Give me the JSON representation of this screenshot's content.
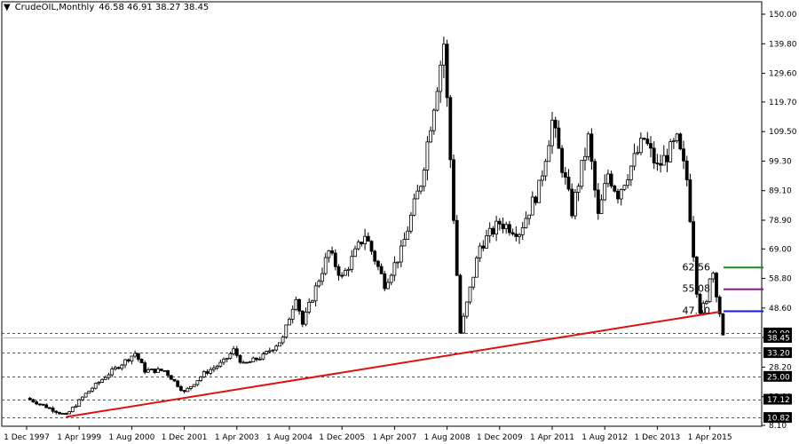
{
  "header": {
    "symbol_label": "CrudeOIL,Monthly",
    "ohlc_text": "46.58 46.91 38.27 38.45",
    "menu_arrow": "chevron-down-icon"
  },
  "chart_data": {
    "type": "candlestick",
    "title": "CrudeOIL,Monthly",
    "ylim": [
      8.1,
      153.5
    ],
    "y_ticks": [
      "150.00",
      "139.80",
      "129.60",
      "119.70",
      "109.50",
      "99.30",
      "89.10",
      "78.90",
      "69.00",
      "58.80",
      "48.60",
      "38.40",
      "28.20",
      "18.00",
      "8.10"
    ],
    "x_ticks": [
      "1 Dec 1997",
      "1 Apr 1999",
      "1 Aug 2000",
      "1 Dec 2001",
      "1 Apr 2003",
      "1 Aug 2004",
      "1 Dec 2005",
      "1 Apr 2007",
      "1 Aug 2008",
      "1 Dec 2009",
      "1 Apr 2011",
      "1 Aug 2012",
      "1 Dec 2013",
      "1 Apr 2015"
    ],
    "price_path": [
      [
        "1 Dec 1997",
        17.5
      ],
      [
        "1 Apr 1998",
        15.5
      ],
      [
        "1 Dec 1998",
        11.5
      ],
      [
        "1 Jun 1999",
        19
      ],
      [
        "1 Dec 1999",
        25
      ],
      [
        "1 Sep 2000",
        33
      ],
      [
        "1 Dec 2000",
        27
      ],
      [
        "1 Jun 2001",
        27
      ],
      [
        "1 Dec 2001",
        19.5
      ],
      [
        "1 Jun 2002",
        26
      ],
      [
        "1 Dec 2002",
        30
      ],
      [
        "1 Mar 2003",
        34
      ],
      [
        "1 Jun 2003",
        29
      ],
      [
        "1 Dec 2003",
        32
      ],
      [
        "1 Jun 2004",
        38
      ],
      [
        "1 Oct 2004",
        53
      ],
      [
        "1 Dec 2004",
        43
      ],
      [
        "1 Aug 2005",
        68
      ],
      [
        "1 Dec 2005",
        59
      ],
      [
        "1 Jul 2006",
        74
      ],
      [
        "1 Jan 2007",
        57
      ],
      [
        "1 Jun 2007",
        68
      ],
      [
        "1 Dec 2007",
        92
      ],
      [
        "1 Jul 2008",
        140
      ],
      [
        "1 Dec 2008",
        40
      ],
      [
        "1 Jun 2009",
        70
      ],
      [
        "1 Dec 2009",
        78
      ],
      [
        "1 Jun 2010",
        75
      ],
      [
        "1 Dec 2010",
        90
      ],
      [
        "1 Apr 2011",
        113
      ],
      [
        "1 Oct 2011",
        82
      ],
      [
        "1 Mar 2012",
        107
      ],
      [
        "1 Jun 2012",
        80
      ],
      [
        "1 Sep 2012",
        95
      ],
      [
        "1 Dec 2012",
        88
      ],
      [
        "1 Aug 2013",
        107
      ],
      [
        "1 Dec 2013",
        97
      ],
      [
        "1 Jun 2014",
        106
      ],
      [
        "1 Sep 2014",
        93
      ],
      [
        "1 Dec 2014",
        55
      ],
      [
        "1 Jan 2015",
        48
      ],
      [
        "1 Mar 2015",
        50
      ],
      [
        "1 Apr 2015",
        60
      ],
      [
        "1 May 2015",
        61
      ],
      [
        "1 Jul 2015",
        47
      ],
      [
        "1 Aug 2015",
        38.45
      ]
    ],
    "horizontal_levels": [
      {
        "value": 62.56,
        "label": "62.56",
        "color": "#1a8c1a"
      },
      {
        "value": 55.08,
        "label": "55.08",
        "color": "#8e168e"
      },
      {
        "value": 47.5,
        "label": "47.50",
        "color": "#1a1ad6"
      }
    ],
    "dashed_levels": [
      {
        "value": 40.0,
        "label": "40.00"
      },
      {
        "value": 33.2,
        "label": "33.20"
      },
      {
        "value": 25.0,
        "label": "25.00"
      },
      {
        "value": 17.12,
        "label": "17.12"
      },
      {
        "value": 10.82,
        "label": "10.82"
      }
    ],
    "current_price": {
      "value": 38.45,
      "label": "38.45"
    },
    "trendline": {
      "color": "#e01010",
      "points": [
        [
          "1 Dec 1998",
          11.0
        ],
        [
          "1 Jul 2015",
          47.3
        ]
      ]
    },
    "colors": {
      "candle": "#000000",
      "grid_dashed": "#555555",
      "current_line": "#bbbbbb",
      "axis_label_bg": "#000000"
    }
  }
}
